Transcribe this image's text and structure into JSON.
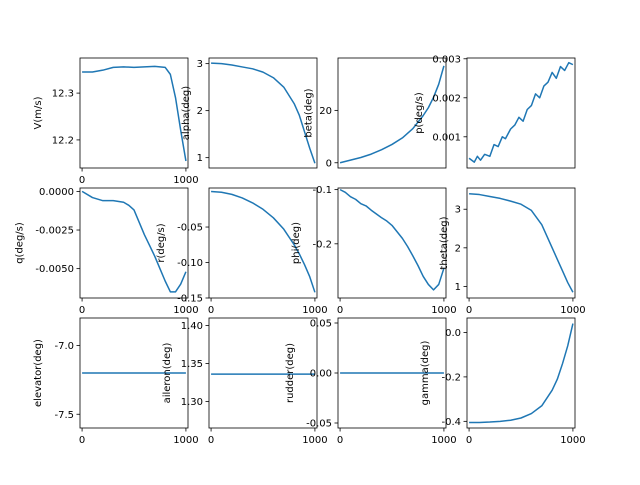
{
  "figure": {
    "line_color": "#1f77b4",
    "axes_color": "#000000",
    "background": "#ffffff"
  },
  "chart_data": [
    {
      "type": "line",
      "ylabel": "V(m/s)",
      "xlim": [
        -20,
        1020
      ],
      "ylim": [
        12.14,
        12.375
      ],
      "xticks": [
        "0",
        "1000"
      ],
      "xtick_values": [
        0,
        1000
      ],
      "show_xticks": true,
      "yticks": [
        "12.2",
        "12.3"
      ],
      "ytick_values": [
        12.2,
        12.3
      ],
      "x": [
        0,
        100,
        200,
        300,
        400,
        500,
        600,
        700,
        800,
        850,
        900,
        950,
        1000
      ],
      "series": [
        {
          "values": [
            12.345,
            12.345,
            12.349,
            12.355,
            12.356,
            12.355,
            12.356,
            12.357,
            12.355,
            12.34,
            12.29,
            12.22,
            12.155
          ]
        }
      ]
    },
    {
      "type": "line",
      "ylabel": "alpha(deg)",
      "xlim": [
        -20,
        1020
      ],
      "ylim": [
        0.78,
        3.12
      ],
      "xticks": [],
      "xtick_values": [],
      "show_xticks": false,
      "yticks": [
        "1",
        "2",
        "3"
      ],
      "ytick_values": [
        1,
        2,
        3
      ],
      "x": [
        0,
        100,
        200,
        300,
        400,
        500,
        600,
        700,
        800,
        850,
        900,
        950,
        1000
      ],
      "series": [
        {
          "values": [
            3.01,
            3.0,
            2.97,
            2.93,
            2.89,
            2.82,
            2.7,
            2.5,
            2.15,
            1.9,
            1.55,
            1.2,
            0.88
          ]
        }
      ]
    },
    {
      "type": "line",
      "ylabel": "beta(deg)",
      "xlim": [
        -20,
        1020
      ],
      "ylim": [
        -2,
        40
      ],
      "xticks": [],
      "xtick_values": [],
      "show_xticks": false,
      "yticks": [
        "0",
        "20"
      ],
      "ytick_values": [
        0,
        20
      ],
      "x": [
        0,
        100,
        200,
        300,
        400,
        500,
        600,
        700,
        800,
        850,
        900,
        950,
        1000
      ],
      "series": [
        {
          "values": [
            0,
            1,
            2,
            3.3,
            5,
            7,
            9.5,
            13,
            18,
            21,
            25,
            30,
            37
          ]
        }
      ]
    },
    {
      "type": "line",
      "ylabel": "p(deg/s)",
      "xlim": [
        -20,
        1020
      ],
      "ylim": [
        0.0002,
        0.00302
      ],
      "xticks": [],
      "xtick_values": [],
      "show_xticks": false,
      "yticks": [
        "0.001",
        "0.002",
        "0.003"
      ],
      "ytick_values": [
        0.001,
        0.002,
        0.003
      ],
      "x": [
        0,
        50,
        80,
        110,
        150,
        200,
        240,
        280,
        320,
        350,
        400,
        440,
        480,
        520,
        560,
        600,
        640,
        680,
        720,
        760,
        800,
        840,
        880,
        920,
        960,
        1000
      ],
      "series": [
        {
          "values": [
            0.00045,
            0.00035,
            0.0005,
            0.0004,
            0.00055,
            0.0005,
            0.0008,
            0.00075,
            0.001,
            0.00095,
            0.0012,
            0.0013,
            0.0015,
            0.0014,
            0.0017,
            0.0018,
            0.0021,
            0.002,
            0.0023,
            0.0024,
            0.00265,
            0.0025,
            0.0028,
            0.0027,
            0.0029,
            0.00285
          ]
        }
      ]
    },
    {
      "type": "line",
      "ylabel": "q(deg/s)",
      "xlim": [
        -20,
        1020
      ],
      "ylim": [
        -0.0069,
        0.00022
      ],
      "xticks": [
        "0",
        "1000"
      ],
      "xtick_values": [
        0,
        1000
      ],
      "show_xticks": true,
      "yticks": [
        "0.0000",
        "-0.0025",
        "-0.0050"
      ],
      "ytick_values": [
        0,
        -0.0025,
        -0.005
      ],
      "x": [
        0,
        100,
        200,
        300,
        400,
        450,
        500,
        550,
        600,
        650,
        700,
        750,
        800,
        850,
        900,
        950,
        1000
      ],
      "series": [
        {
          "values": [
            0,
            -0.0004,
            -0.0006,
            -0.0006,
            -0.0007,
            -0.0009,
            -0.0012,
            -0.002,
            -0.0028,
            -0.0035,
            -0.0042,
            -0.005,
            -0.0058,
            -0.0065,
            -0.0065,
            -0.006,
            -0.0052
          ]
        }
      ]
    },
    {
      "type": "line",
      "ylabel": "r(deg/s)",
      "xlim": [
        -20,
        1020
      ],
      "ylim": [
        -0.15,
        0.005
      ],
      "xticks": [
        "0",
        "1000"
      ],
      "xtick_values": [
        0,
        1000
      ],
      "show_xticks": true,
      "yticks": [
        "-0.05",
        "-0.10",
        "-0.15"
      ],
      "ytick_values": [
        -0.05,
        -0.1,
        -0.15
      ],
      "x": [
        0,
        100,
        200,
        300,
        400,
        500,
        600,
        700,
        800,
        850,
        900,
        950,
        1000
      ],
      "series": [
        {
          "values": [
            0,
            -0.001,
            -0.004,
            -0.009,
            -0.016,
            -0.025,
            -0.037,
            -0.053,
            -0.075,
            -0.088,
            -0.103,
            -0.12,
            -0.142
          ]
        }
      ]
    },
    {
      "type": "line",
      "ylabel": "phi(deg)",
      "xlim": [
        -20,
        1020
      ],
      "ylim": [
        -0.3,
        -0.097
      ],
      "xticks": [
        "0",
        "1000"
      ],
      "xtick_values": [
        0,
        1000
      ],
      "show_xticks": true,
      "yticks": [
        "-0.1",
        "-0.2"
      ],
      "ytick_values": [
        -0.1,
        -0.2
      ],
      "x": [
        0,
        50,
        100,
        150,
        200,
        250,
        300,
        350,
        400,
        450,
        500,
        550,
        600,
        650,
        700,
        750,
        800,
        850,
        900,
        950,
        1000
      ],
      "series": [
        {
          "values": [
            -0.1,
            -0.105,
            -0.113,
            -0.118,
            -0.126,
            -0.13,
            -0.138,
            -0.145,
            -0.152,
            -0.158,
            -0.166,
            -0.178,
            -0.19,
            -0.205,
            -0.222,
            -0.24,
            -0.26,
            -0.275,
            -0.285,
            -0.275,
            -0.245
          ]
        }
      ]
    },
    {
      "type": "line",
      "ylabel": "theta(deg)",
      "xlim": [
        -20,
        1020
      ],
      "ylim": [
        0.7,
        3.55
      ],
      "xticks": [
        "0",
        "1000"
      ],
      "xtick_values": [
        0,
        1000
      ],
      "show_xticks": true,
      "yticks": [
        "1",
        "2",
        "3"
      ],
      "ytick_values": [
        1,
        2,
        3
      ],
      "x": [
        0,
        100,
        200,
        300,
        400,
        500,
        600,
        700,
        800,
        850,
        900,
        950,
        1000
      ],
      "series": [
        {
          "values": [
            3.4,
            3.38,
            3.33,
            3.28,
            3.21,
            3.13,
            2.97,
            2.6,
            2.0,
            1.7,
            1.4,
            1.1,
            0.85
          ]
        }
      ]
    },
    {
      "type": "line",
      "ylabel": "elevator(deg)",
      "xlim": [
        -20,
        1020
      ],
      "ylim": [
        -7.6,
        -6.8
      ],
      "xticks": [
        "0",
        "1000"
      ],
      "xtick_values": [
        0,
        1000
      ],
      "show_xticks": true,
      "yticks": [
        "-7.0",
        "-7.5"
      ],
      "ytick_values": [
        -7.0,
        -7.5
      ],
      "x": [
        0,
        1000
      ],
      "series": [
        {
          "values": [
            -7.2,
            -7.2
          ]
        }
      ]
    },
    {
      "type": "line",
      "ylabel": "aileron(deg)",
      "xlim": [
        -20,
        1020
      ],
      "ylim": [
        1.265,
        1.41
      ],
      "xticks": [
        "0",
        "1000"
      ],
      "xtick_values": [
        0,
        1000
      ],
      "show_xticks": true,
      "yticks": [
        "1.30",
        "1.35",
        "1.40"
      ],
      "ytick_values": [
        1.3,
        1.35,
        1.4
      ],
      "x": [
        0,
        1000
      ],
      "series": [
        {
          "values": [
            1.336,
            1.336
          ]
        }
      ]
    },
    {
      "type": "line",
      "ylabel": "rudder(deg)",
      "xlim": [
        -20,
        1020
      ],
      "ylim": [
        -0.055,
        0.055
      ],
      "xticks": [
        "0",
        "1000"
      ],
      "xtick_values": [
        0,
        1000
      ],
      "show_xticks": true,
      "yticks": [
        "0.05",
        "0.00",
        "-0.05"
      ],
      "ytick_values": [
        0.05,
        0.0,
        -0.05
      ],
      "x": [
        0,
        1000
      ],
      "series": [
        {
          "values": [
            0.0,
            0.0
          ]
        }
      ]
    },
    {
      "type": "line",
      "ylabel": "gamma(deg)",
      "xlim": [
        -20,
        1020
      ],
      "ylim": [
        -0.43,
        0.065
      ],
      "xticks": [
        "0",
        "1000"
      ],
      "xtick_values": [
        0,
        1000
      ],
      "show_xticks": true,
      "yticks": [
        "0.0",
        "-0.2",
        "-0.4"
      ],
      "ytick_values": [
        0.0,
        -0.2,
        -0.4
      ],
      "x": [
        0,
        100,
        200,
        300,
        400,
        500,
        600,
        700,
        800,
        850,
        900,
        950,
        1000
      ],
      "series": [
        {
          "values": [
            -0.405,
            -0.405,
            -0.403,
            -0.4,
            -0.395,
            -0.385,
            -0.365,
            -0.33,
            -0.26,
            -0.21,
            -0.14,
            -0.06,
            0.04
          ]
        }
      ]
    }
  ]
}
